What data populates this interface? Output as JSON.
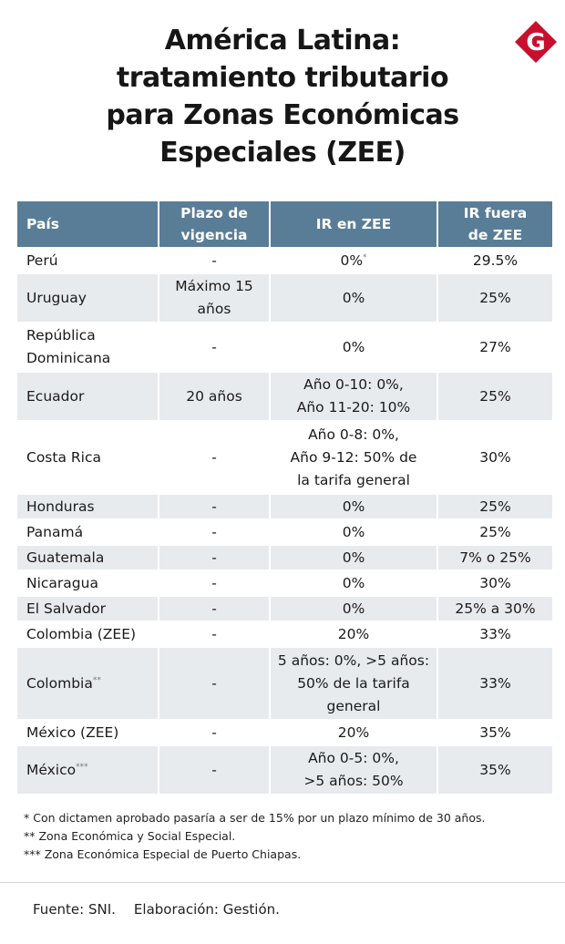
{
  "title_lines": [
    "América Latina:",
    "tratamiento tributario",
    "para Zonas Económicas",
    "Especiales (ZEE)"
  ],
  "logo_letter": "G",
  "brand_color": "#c8102e",
  "header_color": "#5a7d97",
  "stripe_color": "#e8ebee",
  "table": {
    "headers": [
      [
        "País"
      ],
      [
        "Plazo de",
        "vigencia"
      ],
      [
        "IR en ZEE"
      ],
      [
        "IR fuera",
        "de ZEE"
      ]
    ],
    "rows": [
      {
        "country": [
          "Perú"
        ],
        "country_mark": "",
        "plazo": [
          "-"
        ],
        "ir_zee": [
          "0%"
        ],
        "ir_zee_mark": "*",
        "ir_fuera": [
          "29.5%"
        ]
      },
      {
        "country": [
          "Uruguay"
        ],
        "country_mark": "",
        "plazo": [
          "Máximo 15",
          "años"
        ],
        "ir_zee": [
          "0%"
        ],
        "ir_zee_mark": "",
        "ir_fuera": [
          "25%"
        ]
      },
      {
        "country": [
          "República",
          "Dominicana"
        ],
        "country_mark": "",
        "plazo": [
          "-"
        ],
        "ir_zee": [
          "0%"
        ],
        "ir_zee_mark": "",
        "ir_fuera": [
          "27%"
        ]
      },
      {
        "country": [
          "Ecuador"
        ],
        "country_mark": "",
        "plazo": [
          "20 años"
        ],
        "ir_zee": [
          "Año 0-10: 0%,",
          "Año 11-20: 10%"
        ],
        "ir_zee_mark": "",
        "ir_fuera": [
          "25%"
        ]
      },
      {
        "country": [
          "Costa Rica"
        ],
        "country_mark": "",
        "plazo": [
          "-"
        ],
        "ir_zee": [
          "Año 0-8: 0%,",
          "Año 9-12: 50% de",
          "la tarifa general"
        ],
        "ir_zee_mark": "",
        "ir_fuera": [
          "30%"
        ]
      },
      {
        "country": [
          "Honduras"
        ],
        "country_mark": "",
        "plazo": [
          "-"
        ],
        "ir_zee": [
          "0%"
        ],
        "ir_zee_mark": "",
        "ir_fuera": [
          "25%"
        ]
      },
      {
        "country": [
          "Panamá"
        ],
        "country_mark": "",
        "plazo": [
          "-"
        ],
        "ir_zee": [
          "0%"
        ],
        "ir_zee_mark": "",
        "ir_fuera": [
          "25%"
        ]
      },
      {
        "country": [
          "Guatemala"
        ],
        "country_mark": "",
        "plazo": [
          "-"
        ],
        "ir_zee": [
          "0%"
        ],
        "ir_zee_mark": "",
        "ir_fuera": [
          "7% o 25%"
        ]
      },
      {
        "country": [
          "Nicaragua"
        ],
        "country_mark": "",
        "plazo": [
          "-"
        ],
        "ir_zee": [
          "0%"
        ],
        "ir_zee_mark": "",
        "ir_fuera": [
          "30%"
        ]
      },
      {
        "country": [
          "El Salvador"
        ],
        "country_mark": "",
        "plazo": [
          "-"
        ],
        "ir_zee": [
          "0%"
        ],
        "ir_zee_mark": "",
        "ir_fuera": [
          "25% a 30%"
        ]
      },
      {
        "country": [
          "Colombia (ZEE)"
        ],
        "country_mark": "",
        "plazo": [
          "-"
        ],
        "ir_zee": [
          "20%"
        ],
        "ir_zee_mark": "",
        "ir_fuera": [
          "33%"
        ]
      },
      {
        "country": [
          "Colombia"
        ],
        "country_mark": "**",
        "plazo": [
          "-"
        ],
        "ir_zee": [
          "5 años: 0%, >5 años:",
          "50% de la tarifa",
          "general"
        ],
        "ir_zee_mark": "",
        "ir_fuera": [
          "33%"
        ]
      },
      {
        "country": [
          "México (ZEE)"
        ],
        "country_mark": "",
        "plazo": [
          "-"
        ],
        "ir_zee": [
          "20%"
        ],
        "ir_zee_mark": "",
        "ir_fuera": [
          "35%"
        ]
      },
      {
        "country": [
          "México"
        ],
        "country_mark": "***",
        "plazo": [
          "-"
        ],
        "ir_zee": [
          "Año 0-5: 0%,",
          ">5 años: 50%"
        ],
        "ir_zee_mark": "",
        "ir_fuera": [
          "35%"
        ]
      }
    ]
  },
  "notes": [
    "* Con dictamen aprobado pasaría a ser de 15% por un plazo mínimo de 30 años.",
    "** Zona Económica y Social Especial.",
    "*** Zona Económica Especial de Puerto Chiapas."
  ],
  "footer": {
    "source": "Fuente: SNI.",
    "credit": "Elaboración: Gestión."
  }
}
